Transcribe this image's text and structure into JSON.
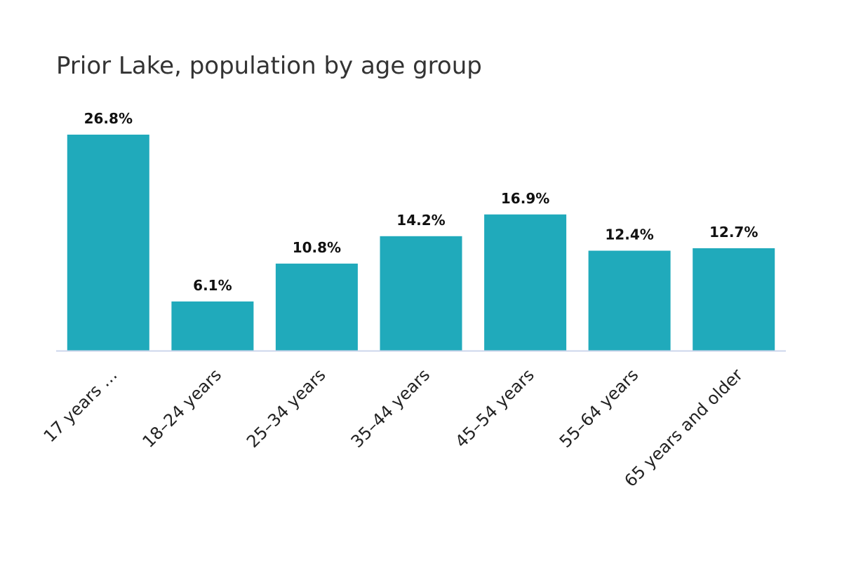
{
  "chart_data": {
    "type": "bar",
    "title": "Prior Lake, population by age group",
    "categories": [
      "17 years …",
      "18–24 years",
      "25–34 years",
      "35–44 years",
      "45–54 years",
      "55–64 years",
      "65 years and older"
    ],
    "values": [
      26.8,
      6.1,
      10.8,
      14.2,
      16.9,
      12.4,
      12.7
    ],
    "value_labels": [
      "26.8%",
      "6.1%",
      "10.8%",
      "14.2%",
      "16.9%",
      "12.4%",
      "12.7%"
    ],
    "xlabel": "",
    "ylabel": "",
    "ylim": [
      0,
      26.8
    ],
    "grid": false,
    "bar_color": "#20aabb",
    "axis_color": "#ccd6eb"
  }
}
